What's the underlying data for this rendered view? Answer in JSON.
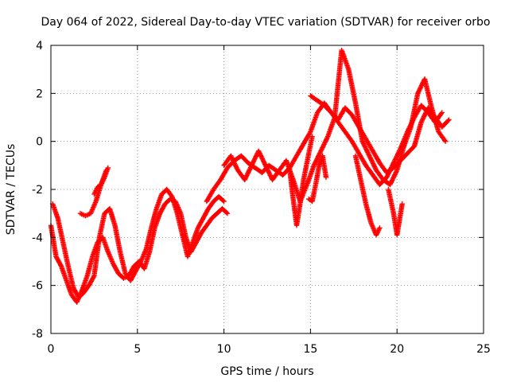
{
  "chart_data": {
    "type": "scatter",
    "title": "Day 064 of 2022, Sidereal Day-to-day VTEC variation (SDTVAR) for receiver orbo",
    "xlabel": "GPS time / hours",
    "ylabel": "SDTVAR / TECUs",
    "xlim": [
      0,
      25
    ],
    "ylim": [
      -8,
      4
    ],
    "xticks": [
      "0",
      "5",
      "10",
      "15",
      "20",
      "25"
    ],
    "yticks": [
      "-8",
      "-6",
      "-4",
      "-2",
      "0",
      "2",
      "4"
    ],
    "grid": true,
    "marker": "+",
    "color": "#ff0000",
    "series": [
      {
        "name": "trace-1",
        "x": [
          0.0,
          0.3,
          0.6,
          0.9,
          1.2,
          1.5,
          1.8,
          2.1,
          2.4,
          2.7,
          3.0,
          3.3,
          3.6,
          3.9,
          4.2,
          4.5,
          4.8,
          5.1,
          5.4,
          5.7,
          6.0,
          6.3,
          6.6,
          6.9,
          7.2,
          7.5,
          7.8,
          8.1,
          8.4,
          8.7,
          9.0,
          9.3,
          9.6,
          9.9,
          10.2
        ],
        "y": [
          -3.5,
          -4.8,
          -5.2,
          -5.8,
          -6.4,
          -6.7,
          -6.2,
          -5.6,
          -4.8,
          -4.2,
          -4.0,
          -4.6,
          -5.1,
          -5.5,
          -5.7,
          -5.6,
          -5.2,
          -5.0,
          -5.3,
          -4.6,
          -3.6,
          -3.0,
          -2.6,
          -2.4,
          -2.5,
          -3.0,
          -4.0,
          -4.6,
          -4.2,
          -3.8,
          -3.5,
          -3.2,
          -3.0,
          -2.8,
          -3.0
        ]
      },
      {
        "name": "trace-2",
        "x": [
          0.1,
          0.4,
          0.7,
          1.0,
          1.3,
          1.6,
          1.9,
          2.2,
          2.5,
          2.8,
          3.1,
          3.4,
          3.7,
          4.0,
          4.3,
          4.6,
          4.9,
          5.2,
          5.5,
          5.8,
          6.1,
          6.4,
          6.7,
          7.0,
          7.3,
          7.6,
          7.9,
          8.2,
          8.5,
          8.8,
          9.1,
          9.4,
          9.7,
          10.0
        ],
        "y": [
          -2.6,
          -3.2,
          -4.2,
          -5.2,
          -6.1,
          -6.5,
          -6.3,
          -6.0,
          -5.6,
          -4.0,
          -3.0,
          -2.8,
          -3.5,
          -4.6,
          -5.5,
          -5.8,
          -5.4,
          -5.0,
          -4.5,
          -3.6,
          -2.8,
          -2.2,
          -2.0,
          -2.3,
          -3.0,
          -3.9,
          -4.8,
          -4.2,
          -3.6,
          -3.2,
          -2.8,
          -2.5,
          -2.3,
          -2.5
        ]
      },
      {
        "name": "trace-3",
        "x": [
          1.7,
          2.0,
          2.3,
          2.6,
          2.9,
          3.2
        ],
        "y": [
          -3.0,
          -3.1,
          -3.0,
          -2.5,
          -1.8,
          -1.2
        ]
      },
      {
        "name": "trace-4",
        "x": [
          2.5,
          2.7,
          2.9,
          3.1,
          3.3
        ],
        "y": [
          -2.2,
          -1.9,
          -1.8,
          -1.5,
          -1.1
        ]
      },
      {
        "name": "trace-5",
        "x": [
          9.0,
          9.4,
          9.8,
          10.2,
          10.6,
          11.0,
          11.4,
          11.8,
          12.2,
          12.6,
          13.0,
          13.4,
          13.8,
          14.2,
          14.6,
          15.0,
          15.4,
          15.8,
          16.2,
          16.6,
          17.0,
          17.4,
          17.8,
          18.2,
          18.6,
          19.0,
          19.4,
          19.8,
          20.2,
          20.6,
          21.0,
          21.4,
          21.8,
          22.2,
          22.6,
          23.0
        ],
        "y": [
          -2.5,
          -2.0,
          -1.6,
          -1.1,
          -0.8,
          -0.6,
          -0.9,
          -1.1,
          -1.3,
          -1.0,
          -1.2,
          -1.4,
          -1.1,
          -0.6,
          -0.1,
          0.4,
          1.2,
          1.6,
          1.2,
          0.9,
          1.4,
          1.1,
          0.6,
          0.1,
          -0.4,
          -0.9,
          -1.3,
          -1.1,
          -0.8,
          -0.5,
          -0.2,
          0.8,
          1.4,
          1.0,
          0.6,
          0.9
        ]
      },
      {
        "name": "trace-6",
        "x": [
          10.0,
          10.4,
          10.8,
          11.2,
          11.6,
          12.0,
          12.4,
          12.8,
          13.2,
          13.6,
          14.0,
          14.4,
          14.8,
          15.2,
          15.6,
          16.0,
          16.4,
          16.8,
          17.2,
          17.6,
          18.0,
          18.4,
          18.8,
          19.2,
          19.6,
          20.0,
          20.4,
          20.8,
          21.2,
          21.6,
          22.0,
          22.4,
          22.8
        ],
        "y": [
          -1.0,
          -0.6,
          -1.2,
          -1.6,
          -1.0,
          -0.4,
          -1.0,
          -1.6,
          -1.2,
          -0.8,
          -1.6,
          -2.5,
          -1.8,
          -1.0,
          -0.4,
          0.2,
          1.0,
          3.8,
          3.0,
          1.6,
          0.0,
          -0.6,
          -1.2,
          -1.6,
          -1.8,
          -1.2,
          -0.2,
          0.6,
          2.0,
          2.6,
          1.4,
          0.4,
          0.0
        ]
      },
      {
        "name": "trace-7",
        "x": [
          15.0,
          15.4,
          15.8,
          16.2,
          16.6,
          17.0,
          17.4,
          17.8,
          18.2,
          18.6,
          19.0,
          19.4,
          19.8,
          20.2,
          20.6,
          21.0,
          21.4,
          21.8,
          22.2,
          22.6
        ],
        "y": [
          1.9,
          1.7,
          1.5,
          1.2,
          0.8,
          0.4,
          0.0,
          -0.5,
          -1.0,
          -1.4,
          -1.8,
          -1.5,
          -0.9,
          -0.3,
          0.4,
          1.0,
          1.5,
          1.2,
          0.8,
          1.2
        ]
      },
      {
        "name": "trace-8",
        "x": [
          17.6,
          17.9,
          18.2,
          18.5,
          18.8,
          19.0
        ],
        "y": [
          -0.6,
          -1.6,
          -2.6,
          -3.4,
          -3.9,
          -3.6
        ]
      },
      {
        "name": "trace-9",
        "x": [
          19.5,
          19.8,
          20.0,
          20.3
        ],
        "y": [
          -2.0,
          -3.0,
          -3.9,
          -2.6
        ]
      },
      {
        "name": "trace-10",
        "x": [
          13.8,
          14.0,
          14.2,
          14.4,
          14.6,
          14.9,
          15.1
        ],
        "y": [
          -1.2,
          -2.4,
          -3.5,
          -2.6,
          -1.6,
          -0.5,
          0.2
        ]
      },
      {
        "name": "trace-11",
        "x": [
          14.9,
          15.1,
          15.3,
          15.5,
          15.7,
          15.9
        ],
        "y": [
          -2.4,
          -2.5,
          -1.8,
          -1.0,
          -0.6,
          -1.5
        ]
      }
    ]
  }
}
